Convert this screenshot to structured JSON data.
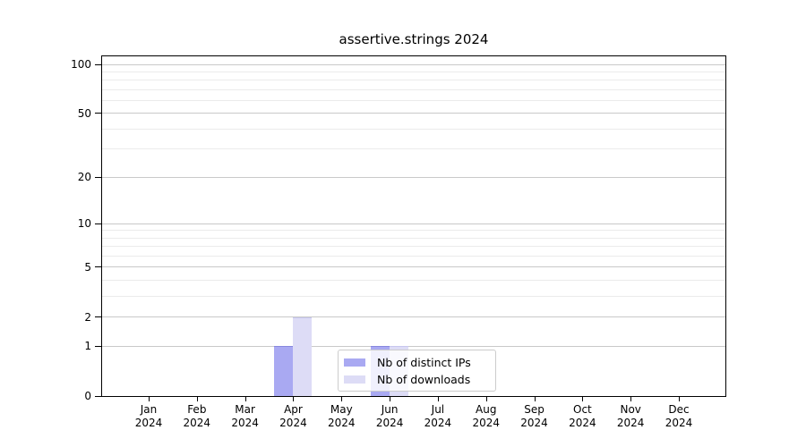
{
  "chart_data": {
    "type": "bar",
    "title": "assertive.strings 2024",
    "x_categories": [
      {
        "month": "Jan",
        "year": "2024"
      },
      {
        "month": "Feb",
        "year": "2024"
      },
      {
        "month": "Mar",
        "year": "2024"
      },
      {
        "month": "Apr",
        "year": "2024"
      },
      {
        "month": "May",
        "year": "2024"
      },
      {
        "month": "Jun",
        "year": "2024"
      },
      {
        "month": "Jul",
        "year": "2024"
      },
      {
        "month": "Aug",
        "year": "2024"
      },
      {
        "month": "Sep",
        "year": "2024"
      },
      {
        "month": "Oct",
        "year": "2024"
      },
      {
        "month": "Nov",
        "year": "2024"
      },
      {
        "month": "Dec",
        "year": "2024"
      }
    ],
    "series": [
      {
        "name": "Nb of distinct IPs",
        "color": "#a9a9f2",
        "edge_color": "#8888dd",
        "values": [
          0,
          0,
          0,
          1,
          0,
          1,
          0,
          0,
          0,
          0,
          0,
          0
        ]
      },
      {
        "name": "Nb of downloads",
        "color": "#dddcf6",
        "edge_color": "#c7c6ee",
        "values": [
          0,
          0,
          0,
          2,
          0,
          1,
          0,
          0,
          0,
          0,
          0,
          0
        ]
      }
    ],
    "y_axis": {
      "scale": "log1p",
      "major_ticks": [
        0,
        1,
        2,
        5,
        10,
        20,
        50,
        100
      ],
      "minor_gridlines": [
        3,
        4,
        6,
        7,
        8,
        9,
        30,
        40,
        60,
        70,
        80,
        90
      ],
      "top_value": 112
    },
    "grid": true,
    "legend": {
      "position": "lower-center",
      "items": [
        "Nb of distinct IPs",
        "Nb of downloads"
      ]
    },
    "colors": {
      "major_grid": "#c9c9c9",
      "minor_grid": "#ebebeb",
      "spine": "#000000",
      "legend_border": "#cccccc"
    }
  }
}
